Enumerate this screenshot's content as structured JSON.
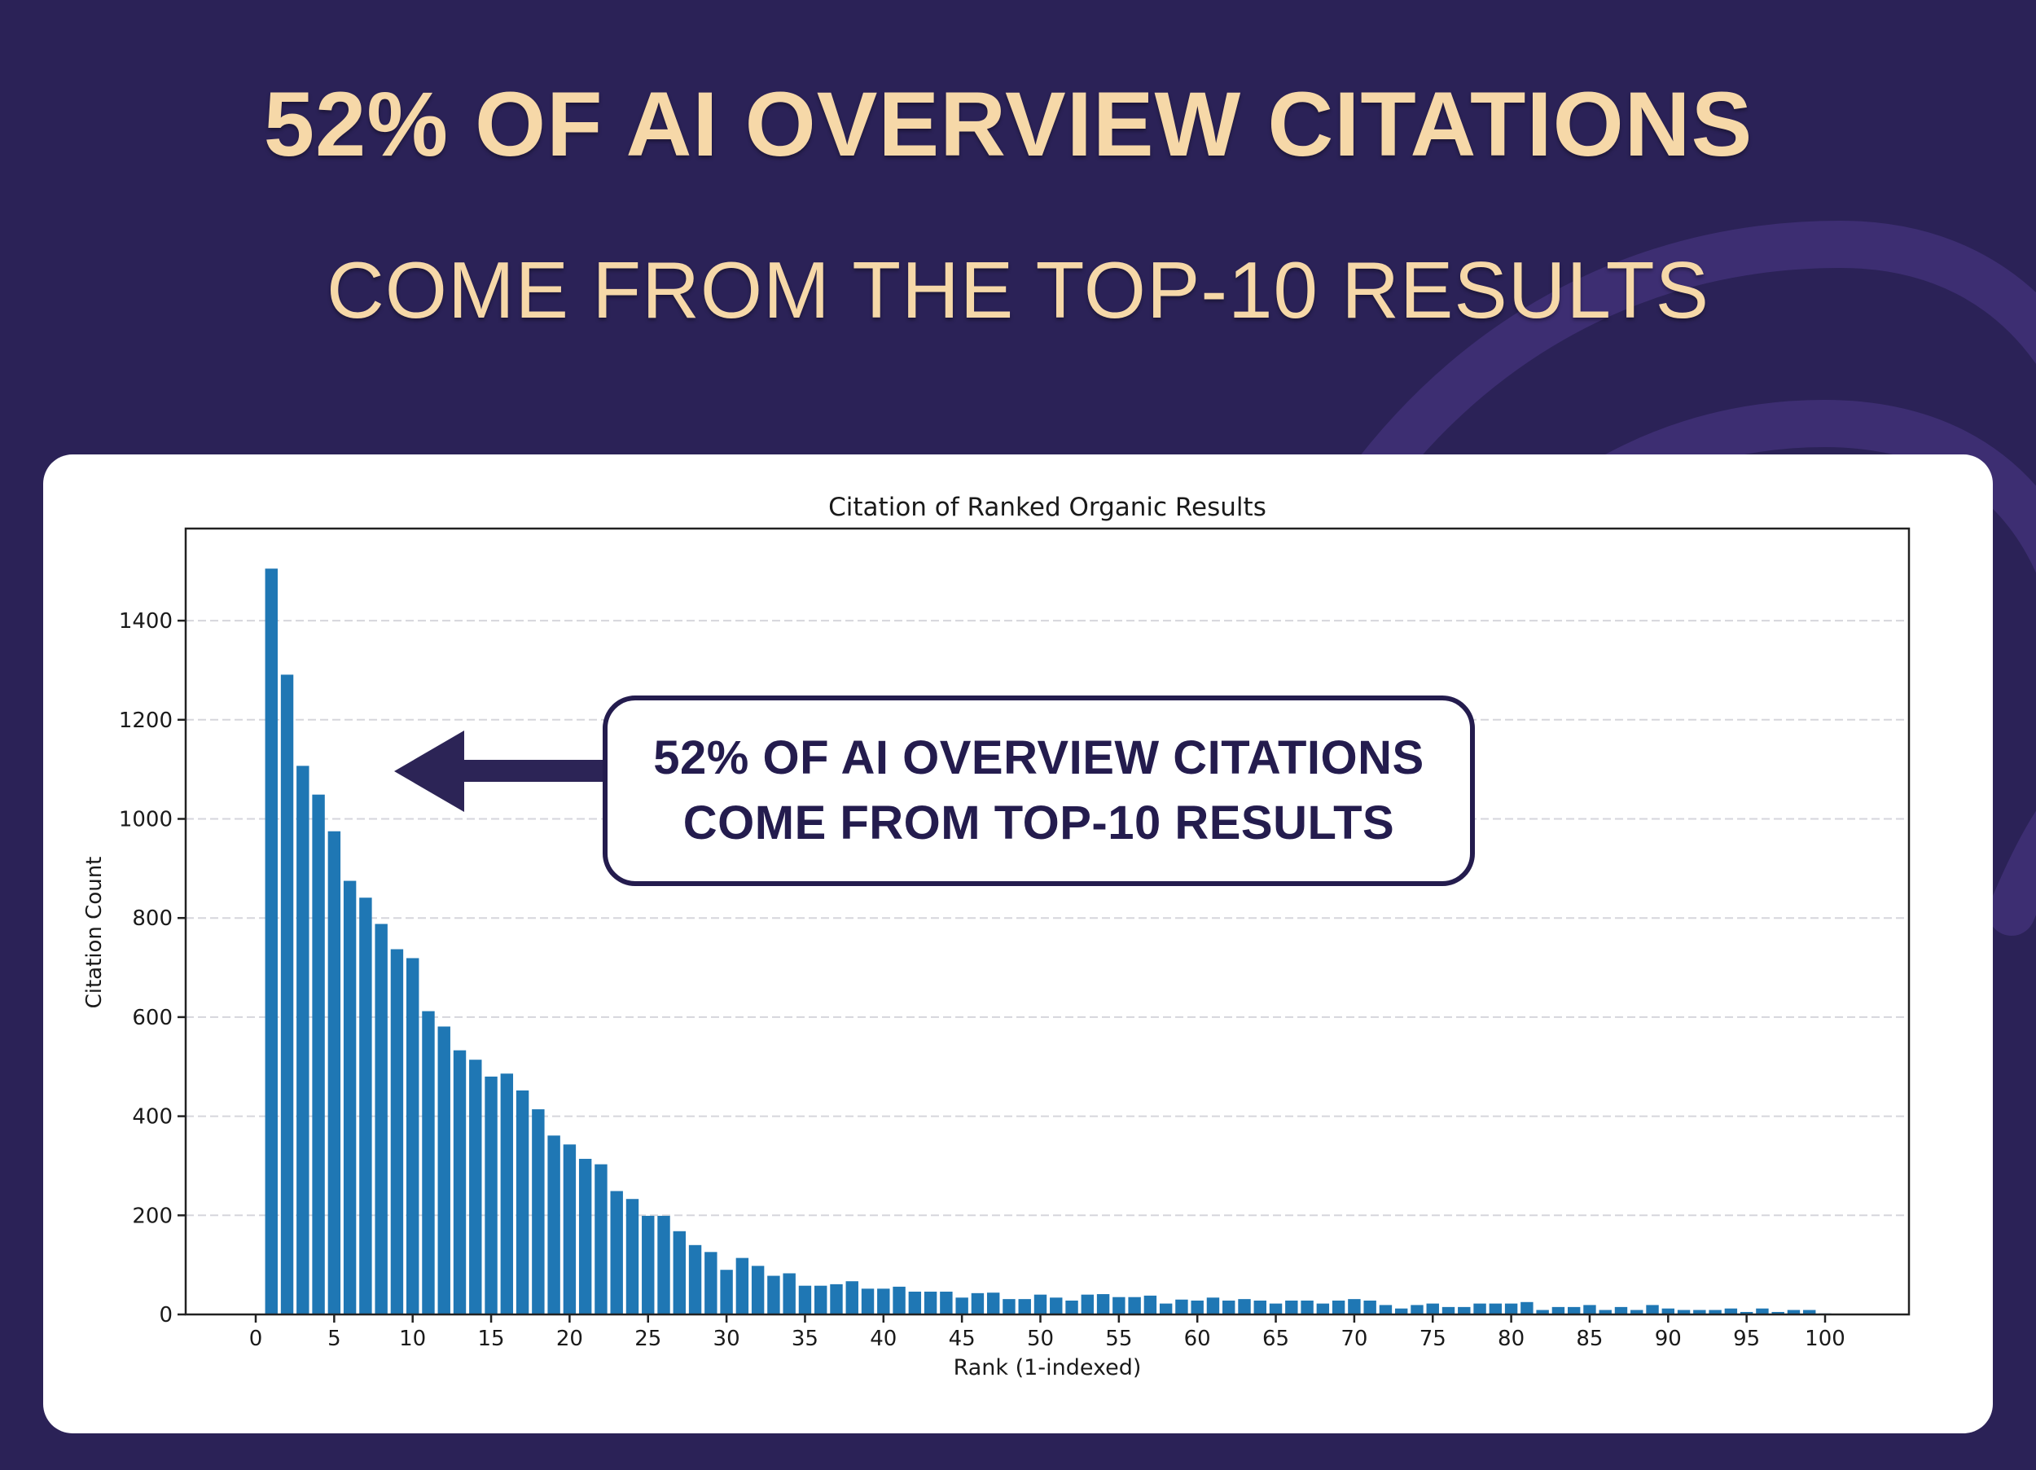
{
  "headline": {
    "line1": "52% OF AI OVERVIEW CITATIONS",
    "line2": "COME FROM THE TOP-10 RESULTS"
  },
  "callout": {
    "line1": "52% OF AI OVERVIEW CITATIONS",
    "line2": "COME FROM TOP-10 RESULTS",
    "arrow_direction": "left-arrow-icon"
  },
  "colors": {
    "background": "#2b2257",
    "swirl": "#3d2e72",
    "headline_text": "#f6d8a8",
    "bar": "#1f77b4",
    "callout_border": "#241c4e",
    "card": "#ffffff"
  },
  "chart_data": {
    "type": "bar",
    "title": "Citation of Ranked Organic Results",
    "xlabel": "Rank (1-indexed)",
    "ylabel": "Citation Count",
    "xlim": [
      -3,
      107
    ],
    "ylim": [
      0,
      1580
    ],
    "xticks": [
      0,
      5,
      10,
      15,
      20,
      25,
      30,
      35,
      40,
      45,
      50,
      55,
      60,
      65,
      70,
      75,
      80,
      85,
      90,
      95,
      100
    ],
    "yticks": [
      0,
      200,
      400,
      600,
      800,
      1000,
      1200,
      1400
    ],
    "grid": "horizontal dashed",
    "legend": null,
    "x": [
      1,
      2,
      3,
      4,
      5,
      6,
      7,
      8,
      9,
      10,
      11,
      12,
      13,
      14,
      15,
      16,
      17,
      18,
      19,
      20,
      21,
      22,
      23,
      24,
      25,
      26,
      27,
      28,
      29,
      30,
      31,
      32,
      33,
      34,
      35,
      36,
      37,
      38,
      39,
      40,
      41,
      42,
      43,
      44,
      45,
      46,
      47,
      48,
      49,
      50,
      51,
      52,
      53,
      54,
      55,
      56,
      57,
      58,
      59,
      60,
      61,
      62,
      63,
      64,
      65,
      66,
      67,
      68,
      69,
      70,
      71,
      72,
      73,
      74,
      75,
      76,
      77,
      78,
      79,
      80,
      81,
      82,
      83,
      84,
      85,
      86,
      87,
      88,
      89,
      90,
      91,
      92,
      93,
      94,
      95,
      96,
      97,
      98,
      99,
      100
    ],
    "values": [
      1505,
      1291,
      1107,
      1049,
      975,
      875,
      841,
      788,
      737,
      719,
      612,
      581,
      533,
      514,
      480,
      486,
      452,
      414,
      361,
      343,
      314,
      303,
      249,
      233,
      199,
      199,
      168,
      140,
      126,
      90,
      114,
      98,
      78,
      83,
      58,
      58,
      61,
      67,
      52,
      52,
      56,
      46,
      46,
      46,
      34,
      43,
      44,
      31,
      31,
      40,
      34,
      28,
      40,
      41,
      35,
      35,
      38,
      22,
      30,
      28,
      34,
      28,
      31,
      28,
      22,
      28,
      28,
      22,
      28,
      31,
      28,
      19,
      12,
      19,
      22,
      15,
      15,
      22,
      22,
      22,
      25,
      9,
      15,
      15,
      19,
      9,
      15,
      9,
      19,
      12,
      9,
      9,
      9,
      12,
      5,
      12,
      5,
      9,
      9,
      2
    ]
  }
}
